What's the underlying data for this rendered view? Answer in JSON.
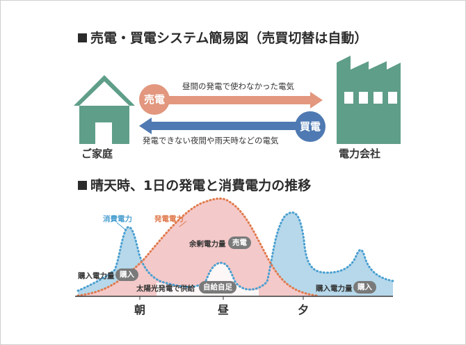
{
  "system_diagram": {
    "title": "売電・買電システム簡易図（売買切替は自動）",
    "home_label": "ご家庭",
    "company_label": "電力会社",
    "sell_badge": "売電",
    "buy_badge": "買電",
    "sell_text": "昼間の発電で使わなかった電気",
    "buy_text": "発電できない夜間や雨天時などの電気",
    "colors": {
      "home": "#5f9e88",
      "sell": "#e2977e",
      "buy": "#4f79b2"
    }
  },
  "transition_chart": {
    "title": "晴天時、1日の発電と消費電力の推移",
    "legend_consumption": "消費電力",
    "legend_generation": "発電電力",
    "surplus_label": "余剰電力量",
    "surplus_badge": "売電",
    "self_supply_label": "太陽光発電で供給",
    "self_supply_badge": "自給自足",
    "purchase_label": "購入電力量",
    "purchase_badge": "購入",
    "colors": {
      "consumption": "#4a9fd0",
      "generation": "#e07a4d",
      "surplus_fill": "#f4c9c9",
      "consumption_fill": "#b6d8ea"
    },
    "time_labels": [
      "朝",
      "昼",
      "夕"
    ]
  }
}
